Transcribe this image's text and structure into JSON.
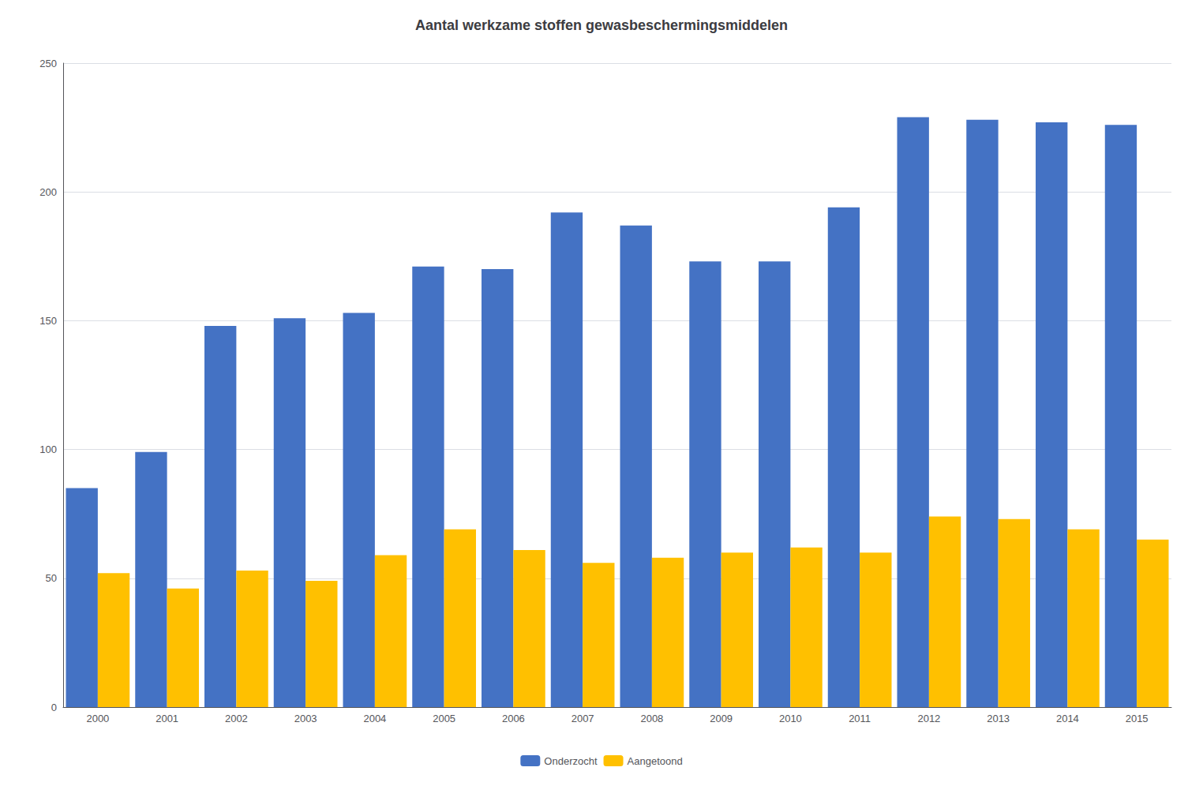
{
  "chart_data": {
    "type": "bar",
    "title": "Aantal werkzame stoffen gewasbeschermingsmiddelen",
    "categories": [
      "2000",
      "2001",
      "2002",
      "2003",
      "2004",
      "2005",
      "2006",
      "2007",
      "2008",
      "2009",
      "2010",
      "2011",
      "2012",
      "2013",
      "2014",
      "2015"
    ],
    "series": [
      {
        "name": "Onderzocht",
        "color": "#4472C4",
        "values": [
          85,
          99,
          148,
          151,
          153,
          171,
          170,
          192,
          187,
          173,
          173,
          194,
          229,
          228,
          227,
          226
        ]
      },
      {
        "name": "Aangetoond",
        "color": "#FFC000",
        "values": [
          52,
          46,
          53,
          49,
          59,
          69,
          61,
          56,
          58,
          60,
          62,
          60,
          74,
          73,
          69,
          65
        ]
      }
    ],
    "ylim": [
      0,
      250
    ],
    "yticks": [
      0,
      50,
      100,
      150,
      200,
      250
    ],
    "grid": true,
    "legend": "bottom"
  }
}
